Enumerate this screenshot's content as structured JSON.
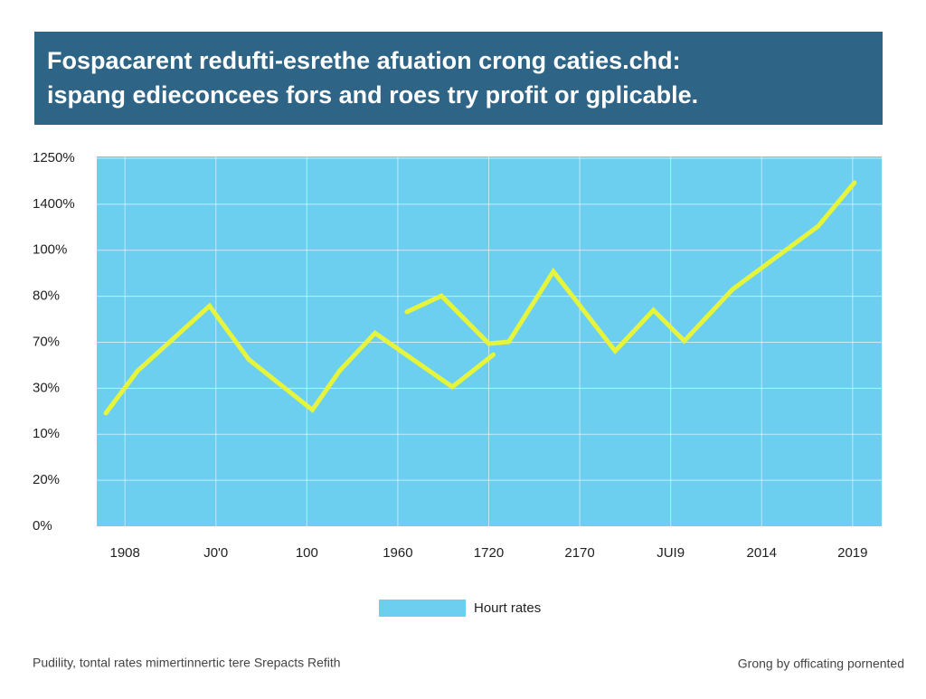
{
  "title_lines": [
    "Fospacarent redufti-esrethe afuation crong caties.chd:",
    "ispang edieconcees fors and roes try profit or gplicable."
  ],
  "chart_data": {
    "type": "line",
    "categories": [
      "1908",
      "J0'0",
      "100",
      "1960",
      "1720",
      "2170",
      "JUI9",
      "2014",
      "2019"
    ],
    "ycategories": [
      "0%",
      "20%",
      "10%",
      "30%",
      "70%",
      "80%",
      "100%",
      "1400%",
      "1250%"
    ],
    "xlim": [
      -0.31,
      8.32
    ],
    "ylim": [
      0,
      8.04
    ],
    "series": [
      {
        "color": "#e6f53c",
        "x": [
          -0.21,
          0.14,
          0.93,
          1.36,
          2.06,
          2.36,
          2.75,
          3.6,
          4.05
        ],
        "values": [
          2.46,
          3.38,
          4.79,
          3.63,
          2.53,
          3.38,
          4.2,
          3.03,
          3.73
        ]
      },
      {
        "color": "#e6f53c",
        "x": [
          3.1,
          3.48,
          4.0,
          4.22,
          4.71,
          5.39,
          5.81,
          6.15,
          6.68,
          7.62,
          8.02
        ],
        "values": [
          4.66,
          5.01,
          3.97,
          4.01,
          5.54,
          3.81,
          4.7,
          4.03,
          5.15,
          6.52,
          7.47
        ]
      }
    ],
    "plot_color": "#6dcff0",
    "grid": true,
    "legend": {
      "label": "Hourt rates",
      "color": "#6dcff0"
    }
  },
  "footer": {
    "left": "Pudility, tontal rates mimertinnertic tere Srepacts Refith",
    "right": "Grong by officating pornented"
  }
}
